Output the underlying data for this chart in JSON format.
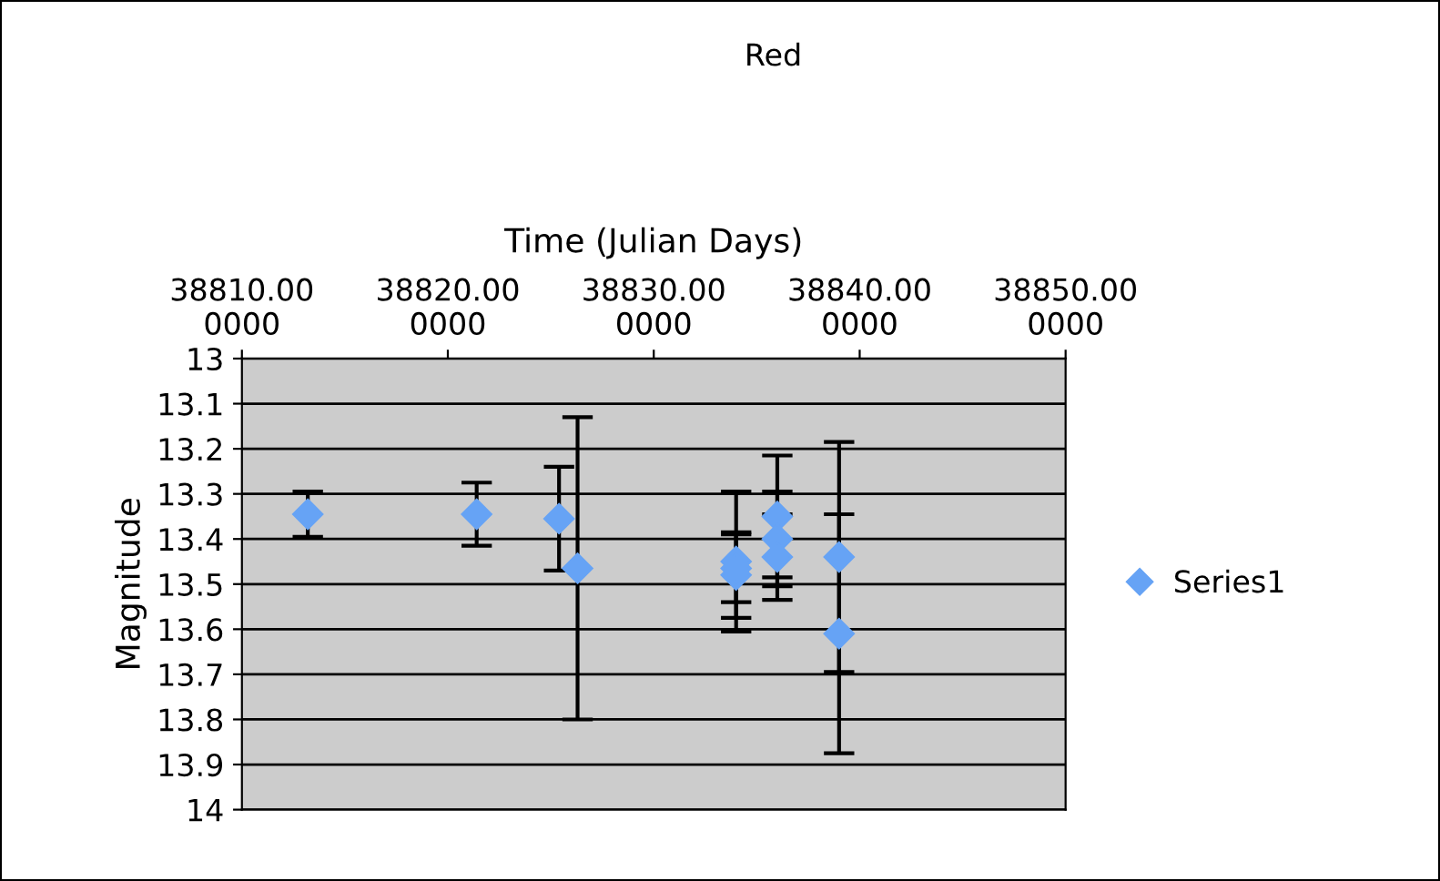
{
  "chart_data": {
    "type": "scatter",
    "title": "Red",
    "xlabel": "Time (Julian Days)",
    "ylabel": "Magnitude",
    "x": [
      38813.2,
      38821.4,
      38825.4,
      38826.3,
      38834.0,
      38834.0,
      38834.0,
      38836.0,
      38836.0,
      38836.0,
      38839.0,
      38839.0
    ],
    "series": [
      {
        "name": "Series1",
        "color": "#66a3f5",
        "values": [
          13.345,
          13.345,
          13.355,
          13.465,
          13.45,
          13.48,
          13.465,
          13.35,
          13.4,
          13.44,
          13.44,
          13.61
        ],
        "errors": [
          0.05,
          0.07,
          0.115,
          0.335,
          0.155,
          0.095,
          0.075,
          0.135,
          0.105,
          0.095,
          0.255,
          0.265
        ]
      }
    ],
    "xlim": [
      38810,
      38850
    ],
    "xticks": [
      {
        "value": 38810,
        "label": "38810.000000"
      },
      {
        "value": 38820,
        "label": "38820.000000"
      },
      {
        "value": 38830,
        "label": "38830.000000"
      },
      {
        "value": 38840,
        "label": "38840.000000"
      },
      {
        "value": 38850,
        "label": "38850.000000"
      }
    ],
    "ylim": [
      14,
      13
    ],
    "yticks": [
      13,
      13.1,
      13.2,
      13.3,
      13.4,
      13.5,
      13.6,
      13.7,
      13.8,
      13.9,
      14
    ],
    "grid": "y",
    "legend": "right",
    "marker": "diamond"
  }
}
